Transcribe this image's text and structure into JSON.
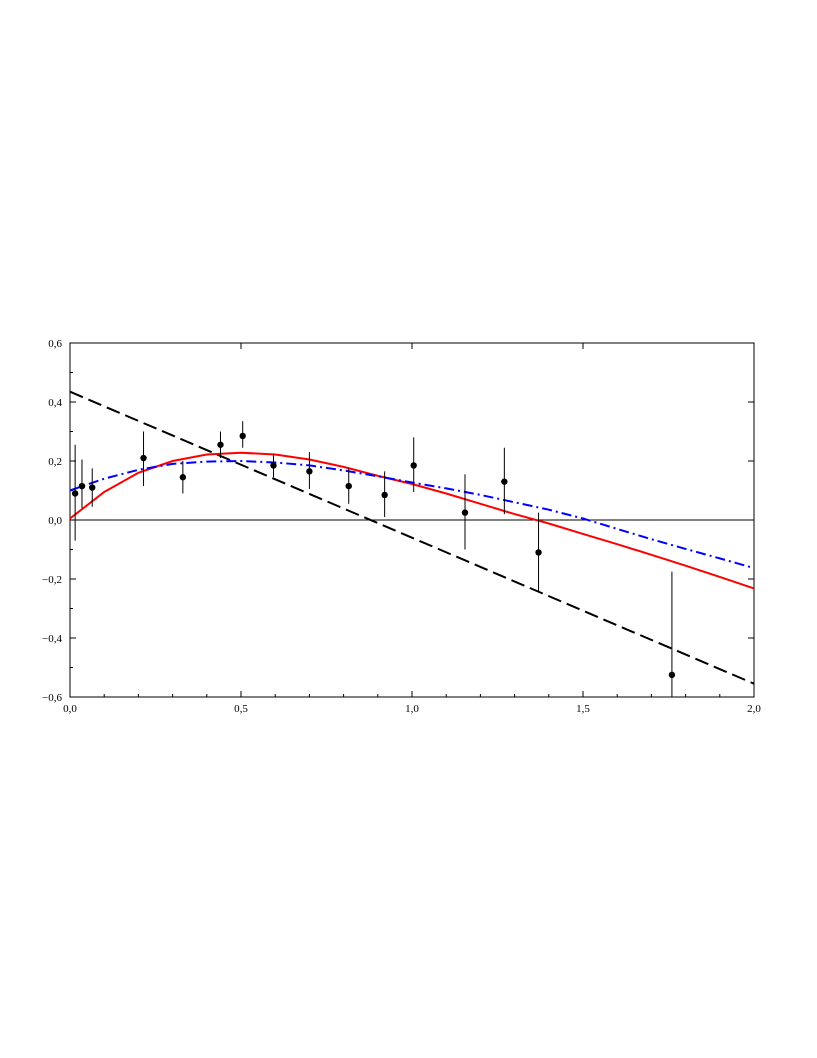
{
  "chart_data": {
    "type": "scatter",
    "title": "",
    "xlabel": "",
    "ylabel": "",
    "xlim": [
      0,
      2.0
    ],
    "ylim": [
      -0.6,
      0.6
    ],
    "grid": false,
    "x_ticks": [
      0,
      0.5,
      1.0,
      1.5,
      2.0
    ],
    "x_tick_labels": [
      "0,0",
      "0,5",
      "1,0",
      "1,5",
      "2,0"
    ],
    "y_ticks": [
      0.6,
      0.4,
      0.2,
      0.0,
      -0.2,
      -0.4,
      -0.6
    ],
    "y_tick_labels": [
      "0,6",
      "0,4",
      "0,2",
      "0,0",
      "−0,2",
      "−0,4",
      "−0,6"
    ],
    "zero_line": true,
    "points": [
      {
        "x": 0.015,
        "y": 0.09,
        "lo": -0.07,
        "hi": 0.255
      },
      {
        "x": 0.035,
        "y": 0.115,
        "lo": 0.04,
        "hi": 0.205
      },
      {
        "x": 0.065,
        "y": 0.11,
        "lo": 0.045,
        "hi": 0.175
      },
      {
        "x": 0.215,
        "y": 0.21,
        "lo": 0.115,
        "hi": 0.3
      },
      {
        "x": 0.33,
        "y": 0.145,
        "lo": 0.09,
        "hi": 0.2
      },
      {
        "x": 0.44,
        "y": 0.255,
        "lo": 0.21,
        "hi": 0.3
      },
      {
        "x": 0.505,
        "y": 0.285,
        "lo": 0.245,
        "hi": 0.335
      },
      {
        "x": 0.595,
        "y": 0.185,
        "lo": 0.145,
        "hi": 0.225
      },
      {
        "x": 0.7,
        "y": 0.165,
        "lo": 0.105,
        "hi": 0.23
      },
      {
        "x": 0.815,
        "y": 0.115,
        "lo": 0.055,
        "hi": 0.175
      },
      {
        "x": 0.92,
        "y": 0.085,
        "lo": 0.01,
        "hi": 0.165
      },
      {
        "x": 1.005,
        "y": 0.185,
        "lo": 0.095,
        "hi": 0.28
      },
      {
        "x": 1.155,
        "y": 0.025,
        "lo": -0.1,
        "hi": 0.155
      },
      {
        "x": 1.27,
        "y": 0.13,
        "lo": 0.02,
        "hi": 0.245
      },
      {
        "x": 1.37,
        "y": -0.11,
        "lo": -0.245,
        "hi": 0.025
      },
      {
        "x": 1.76,
        "y": -0.525,
        "lo": -0.6,
        "hi": -0.175
      }
    ],
    "series": [
      {
        "style": "dashed",
        "color": "#000000",
        "x": [
          0,
          2.0
        ],
        "y": [
          0.435,
          -0.555
        ]
      },
      {
        "style": "solid",
        "color": "#ff0000",
        "x": [
          0,
          0.1,
          0.2,
          0.3,
          0.4,
          0.5,
          0.6,
          0.7,
          0.8,
          0.9,
          1.0,
          1.1,
          1.2,
          1.3,
          1.4,
          1.5,
          1.6,
          1.7,
          1.8,
          1.9,
          2.0
        ],
        "y": [
          0.005,
          0.095,
          0.16,
          0.2,
          0.222,
          0.228,
          0.222,
          0.205,
          0.18,
          0.15,
          0.122,
          0.09,
          0.055,
          0.02,
          -0.012,
          -0.047,
          -0.082,
          -0.118,
          -0.155,
          -0.193,
          -0.232
        ]
      },
      {
        "style": "dash-dot",
        "color": "#0000ff",
        "x": [
          0,
          0.1,
          0.2,
          0.3,
          0.4,
          0.5,
          0.6,
          0.7,
          0.8,
          0.9,
          1.0,
          1.1,
          1.2,
          1.3,
          1.4,
          1.5,
          1.6,
          1.7,
          1.8,
          1.9,
          2.0
        ],
        "y": [
          0.1,
          0.14,
          0.17,
          0.19,
          0.198,
          0.2,
          0.195,
          0.185,
          0.168,
          0.148,
          0.127,
          0.107,
          0.085,
          0.06,
          0.035,
          0.005,
          -0.03,
          -0.065,
          -0.098,
          -0.13,
          -0.163
        ]
      }
    ]
  }
}
